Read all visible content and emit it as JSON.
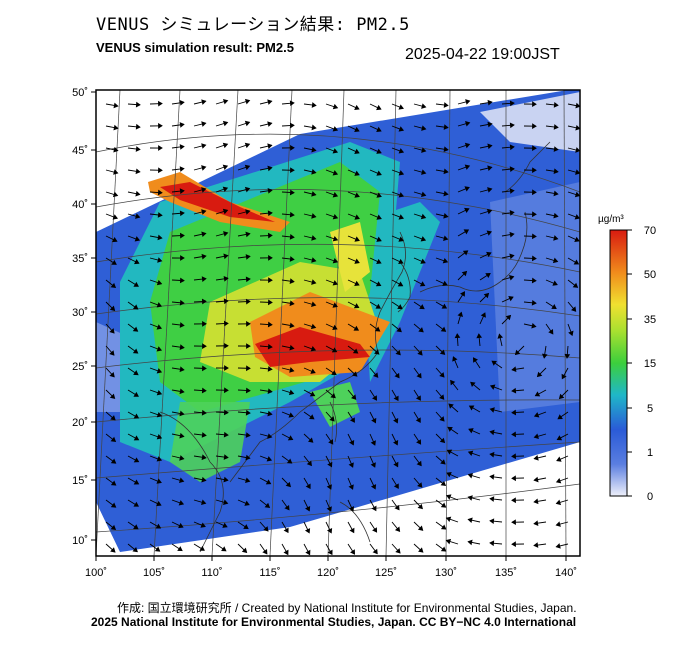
{
  "header": {
    "title_jp": "VENUS シミュレーション結果: PM2.5",
    "title_en": "VENUS simulation result: PM2.5",
    "datetime": "2025-04-22 19:00JST"
  },
  "map": {
    "lat_labels": [
      "50˚",
      "45˚",
      "40˚",
      "35˚",
      "30˚",
      "25˚",
      "20˚",
      "15˚",
      "10˚"
    ],
    "lon_labels": [
      "100˚",
      "105˚",
      "110˚",
      "115˚",
      "120˚",
      "125˚",
      "130˚",
      "135˚",
      "140˚"
    ],
    "vector_field": "wind arrows"
  },
  "colorbar": {
    "unit": "µg/m³",
    "tick_labels": [
      "70",
      "50",
      "35",
      "15",
      "5",
      "1",
      "0"
    ],
    "colors": [
      "#e8ecf8",
      "#2a5bd7",
      "#21c7b2",
      "#3ccf3c",
      "#e7e33a",
      "#f08c1c",
      "#d81b10"
    ]
  },
  "footer": {
    "credit": "作成: 国立環境研究所 / Created by National Institute for Environmental Studies, Japan.",
    "copyright": "2025 National Institute for Environmental Studies, Japan. CC BY−NC 4.0 International"
  }
}
